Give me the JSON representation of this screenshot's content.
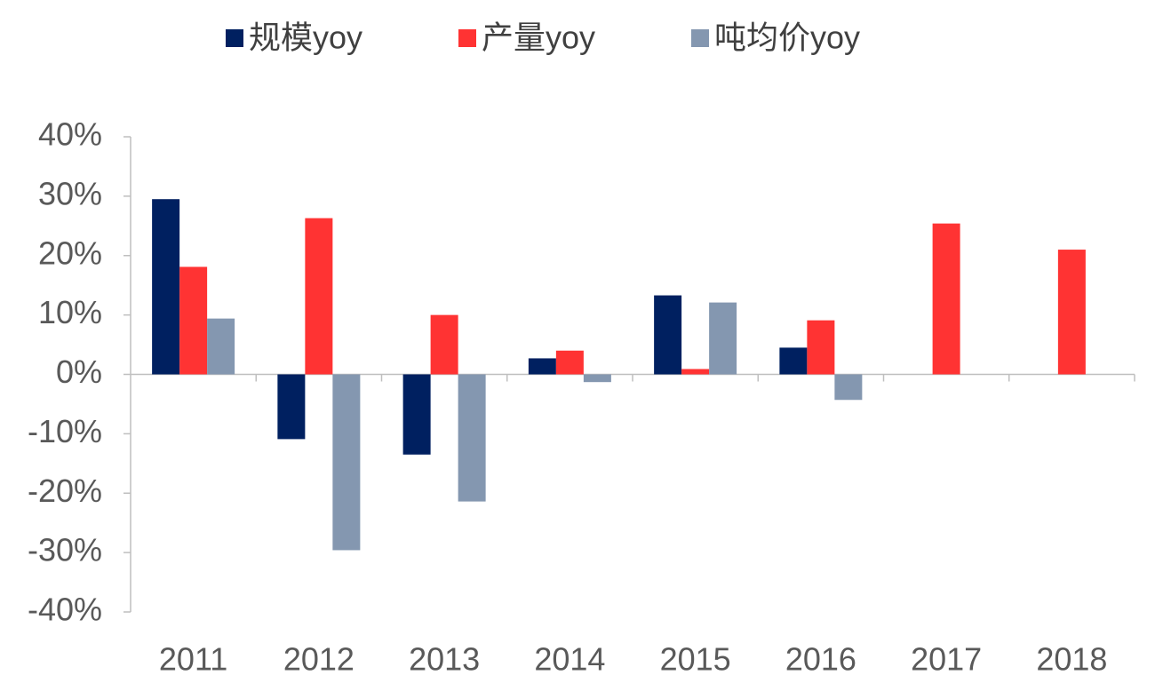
{
  "chart_data": {
    "type": "bar",
    "categories": [
      "2011",
      "2012",
      "2013",
      "2014",
      "2015",
      "2016",
      "2017",
      "2018"
    ],
    "series": [
      {
        "name": "规模yoy",
        "color": "#002060",
        "values": [
          29.5,
          -10.9,
          -13.5,
          2.7,
          13.3,
          4.5,
          null,
          null
        ]
      },
      {
        "name": "产量yoy",
        "color": "#ff3333",
        "values": [
          18.1,
          26.3,
          10.0,
          4.0,
          0.9,
          9.1,
          25.4,
          21.0
        ]
      },
      {
        "name": "吨均价yoy",
        "color": "#8497b0",
        "values": [
          9.4,
          -29.6,
          -21.4,
          -1.3,
          12.1,
          -4.3,
          null,
          null
        ]
      }
    ],
    "ylim": [
      -40,
      40
    ],
    "yticks": [
      {
        "value": -40,
        "label": "-40%"
      },
      {
        "value": -30,
        "label": "-30%"
      },
      {
        "value": -20,
        "label": "-20%"
      },
      {
        "value": -10,
        "label": "-10%"
      },
      {
        "value": 0,
        "label": "0%"
      },
      {
        "value": 10,
        "label": "10%"
      },
      {
        "value": 20,
        "label": "20%"
      },
      {
        "value": 30,
        "label": "30%"
      },
      {
        "value": 40,
        "label": "40%"
      }
    ],
    "grid": false,
    "legend": "top"
  }
}
